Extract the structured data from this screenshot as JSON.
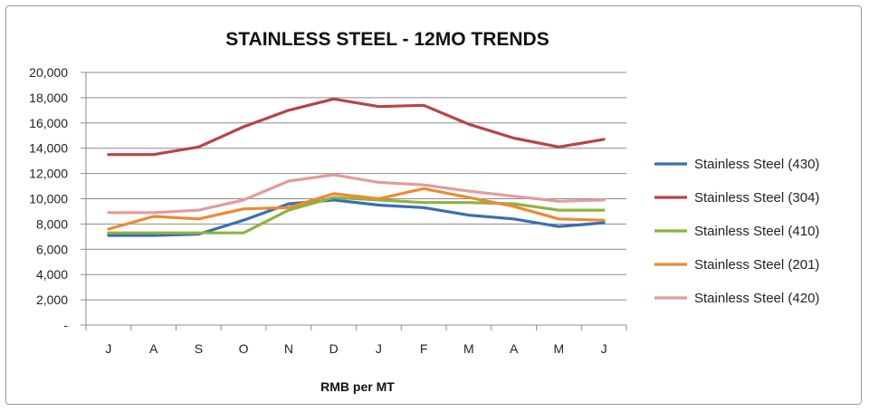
{
  "chart_data": {
    "type": "line",
    "title": "STAINLESS STEEL - 12MO TRENDS",
    "xlabel": "RMB per MT",
    "ylabel": "",
    "categories": [
      "J",
      "A",
      "S",
      "O",
      "N",
      "D",
      "J",
      "F",
      "M",
      "A",
      "M",
      "J"
    ],
    "ylim": [
      0,
      20000
    ],
    "y_ticks": [
      0,
      2000,
      4000,
      6000,
      8000,
      10000,
      12000,
      14000,
      16000,
      18000,
      20000
    ],
    "y_tick_labels": [
      "-",
      "2,000",
      "4,000",
      "6,000",
      "8,000",
      "10,000",
      "12,000",
      "14,000",
      "16,000",
      "18,000",
      "20,000"
    ],
    "grid": true,
    "legend_position": "right",
    "series": [
      {
        "name": "Stainless Steel (430)",
        "color": "#3a6fb0",
        "values": [
          7100,
          7100,
          7200,
          8300,
          9600,
          9900,
          9500,
          9300,
          8700,
          8400,
          7800,
          8100
        ]
      },
      {
        "name": "Stainless Steel (304)",
        "color": "#b84444",
        "values": [
          13500,
          13500,
          14100,
          15700,
          17000,
          17900,
          17300,
          17400,
          15900,
          14800,
          14100,
          14700
        ]
      },
      {
        "name": "Stainless Steel (410)",
        "color": "#8eb33e",
        "values": [
          7300,
          7300,
          7300,
          7300,
          9100,
          10100,
          9900,
          9700,
          9700,
          9600,
          9100,
          9100
        ]
      },
      {
        "name": "Stainless Steel (201)",
        "color": "#ec8a33",
        "values": [
          7600,
          8600,
          8400,
          9200,
          9300,
          10400,
          10000,
          10800,
          10100,
          9400,
          8400,
          8300
        ]
      },
      {
        "name": "Stainless Steel (420)",
        "color": "#e19c9c",
        "values": [
          8900,
          8900,
          9100,
          9900,
          11400,
          11900,
          11300,
          11100,
          10600,
          10200,
          9800,
          9900
        ]
      }
    ]
  }
}
